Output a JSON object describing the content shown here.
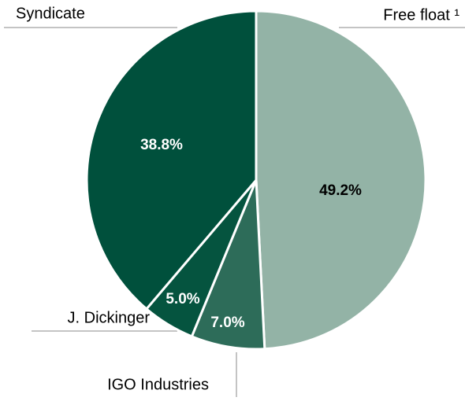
{
  "chart_data": {
    "type": "pie",
    "categories": [
      "Free float ¹",
      "IGO Industries",
      "J. Dickinger",
      "Syndicate"
    ],
    "values": [
      49.2,
      7.0,
      5.0,
      38.8
    ],
    "value_labels": [
      "49.2%",
      "7.0%",
      "5.0%",
      "38.8%"
    ],
    "colors": [
      "#93b3a6",
      "#2d6c59",
      "#05543f",
      "#00503c"
    ]
  }
}
